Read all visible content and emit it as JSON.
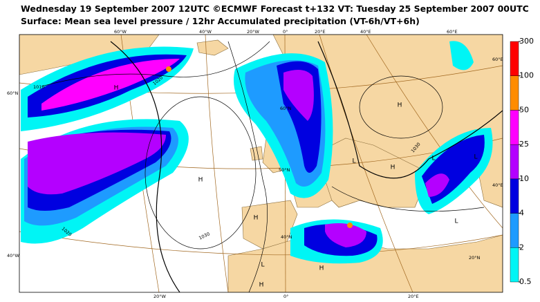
{
  "header": {
    "title": "Wednesday 19 September 2007 12UTC ©ECMWF Forecast t+132 VT: Tuesday 25 September 2007 00UTC",
    "subtitle": "Surface: Mean sea level pressure / 12hr Accumulated precipitation (VT-6h/VT+6h)"
  },
  "colorbar": {
    "levels": [
      0.5,
      2,
      4,
      10,
      25,
      50,
      100,
      300
    ],
    "colors": [
      "#00f5f5",
      "#1e9bff",
      "#0000e0",
      "#b400ff",
      "#ff00ff",
      "#ff8c00",
      "#ff0000"
    ]
  },
  "map": {
    "grid_labels": [
      "60°W",
      "40°W",
      "20°W",
      "0°",
      "20°E",
      "40°E",
      "60°E",
      "60°N",
      "40°W",
      "60°E",
      "40°E",
      "20°W",
      "0°",
      "20°E",
      "60°N",
      "50°N",
      "40°N",
      "20°N"
    ],
    "pressure_centers": [
      "H",
      "H",
      "H",
      "H",
      "L",
      "H",
      "L",
      "H",
      "L",
      "L",
      "H",
      "L"
    ],
    "isobar_labels": [
      "1020",
      "1010",
      "1030",
      "1030",
      "1020"
    ]
  }
}
